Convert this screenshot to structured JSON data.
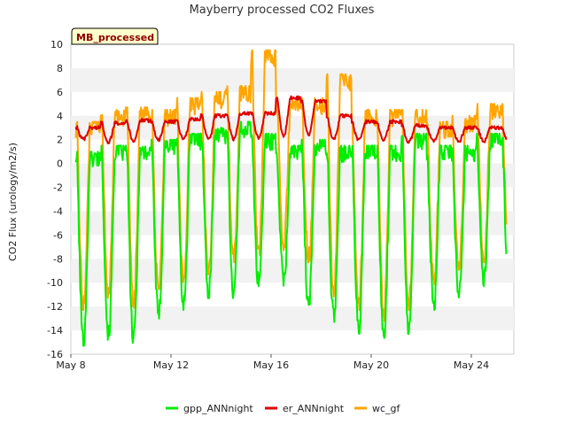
{
  "chart_data": {
    "type": "line",
    "title": "Mayberry processed CO2 Fluxes",
    "badge": "MB_processed",
    "ylabel": "CO2 Flux (urology/m2/s)",
    "xlabel": "",
    "xlim": [
      "May 8",
      "May 25.7"
    ],
    "ylim": [
      -16,
      10
    ],
    "yticks": [
      10,
      8,
      6,
      4,
      2,
      0,
      -2,
      -4,
      -6,
      -8,
      -10,
      -12,
      -14,
      -16
    ],
    "xticks": [
      {
        "label": "May 8",
        "day": 8
      },
      {
        "label": "May 12",
        "day": 12
      },
      {
        "label": "May 16",
        "day": 16
      },
      {
        "label": "May 20",
        "day": 20
      },
      {
        "label": "May 24",
        "day": 24
      }
    ],
    "grid": "horizontal alternating bands",
    "legend_position": "bottom",
    "series": [
      {
        "name": "gpp_ANNnight",
        "color": "#00ee00",
        "daily_min": [
          -15,
          -14.5,
          -15,
          -13,
          -12,
          -11,
          -11,
          -10,
          -10,
          -12,
          -13,
          -14,
          -14.5,
          -14,
          -12,
          -11,
          -10
        ],
        "daily_max": [
          0.5,
          1,
          1,
          1.5,
          2,
          2.5,
          3,
          2,
          1,
          1.5,
          1,
          1,
          1,
          2,
          1,
          1,
          2
        ]
      },
      {
        "name": "er_ANNnight",
        "color": "#dd0000",
        "daily_min": [
          2,
          1.8,
          1.9,
          2,
          2,
          2,
          2,
          2.2,
          2.3,
          2.4,
          2,
          2,
          2,
          1.8,
          1.9,
          1.9,
          1.9
        ],
        "daily_max": [
          3,
          3.4,
          3.6,
          3.5,
          3.7,
          4,
          4.2,
          4.2,
          5.5,
          5.2,
          4,
          3.5,
          3.5,
          3.2,
          3,
          3,
          3
        ]
      },
      {
        "name": "wc_gf",
        "color": "#ffa500",
        "daily_min": [
          -12,
          -11,
          -12,
          -11,
          -10,
          -9,
          -8,
          -8,
          -7,
          -8,
          -11,
          -12,
          -13,
          -12,
          -10,
          -9,
          -8
        ],
        "daily_max": [
          3,
          4,
          4.2,
          4,
          5,
          5.5,
          6,
          9,
          5,
          5,
          7,
          4,
          4,
          4,
          3,
          3.5,
          4.5
        ]
      }
    ]
  }
}
